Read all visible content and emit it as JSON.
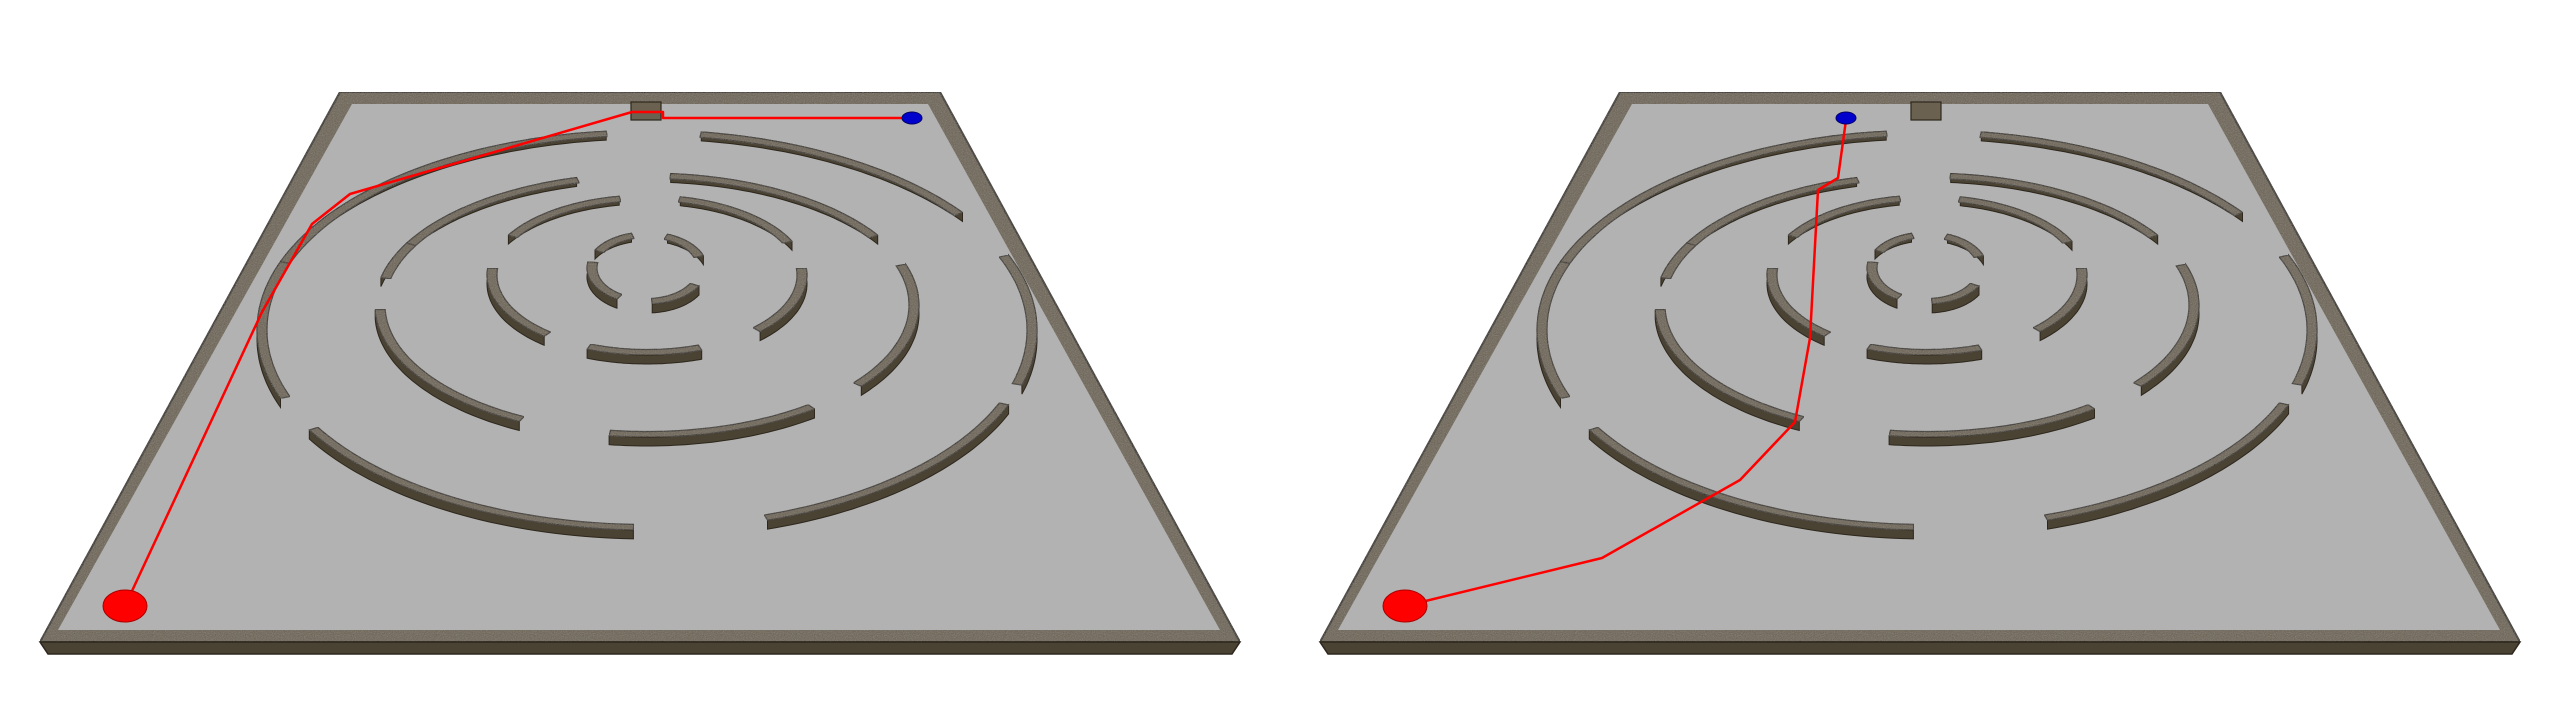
{
  "colors": {
    "background": "#ffffff",
    "floor": "#b2b2b2",
    "wall_top": "#6b6150",
    "wall_face": "#4a4232",
    "wall_outline": "#2d271d",
    "path": "#ff0000",
    "start_marker": "#ff0000",
    "goal_marker": "#0000cc"
  },
  "panels": [
    {
      "name": "maze-panel-left",
      "path_name": "planned-path-left",
      "start_name": "start-marker-left",
      "goal_name": "goal-marker-left"
    },
    {
      "name": "maze-panel-right",
      "path_name": "planned-path-right",
      "start_name": "start-marker-right",
      "goal_name": "goal-marker-right"
    }
  ]
}
